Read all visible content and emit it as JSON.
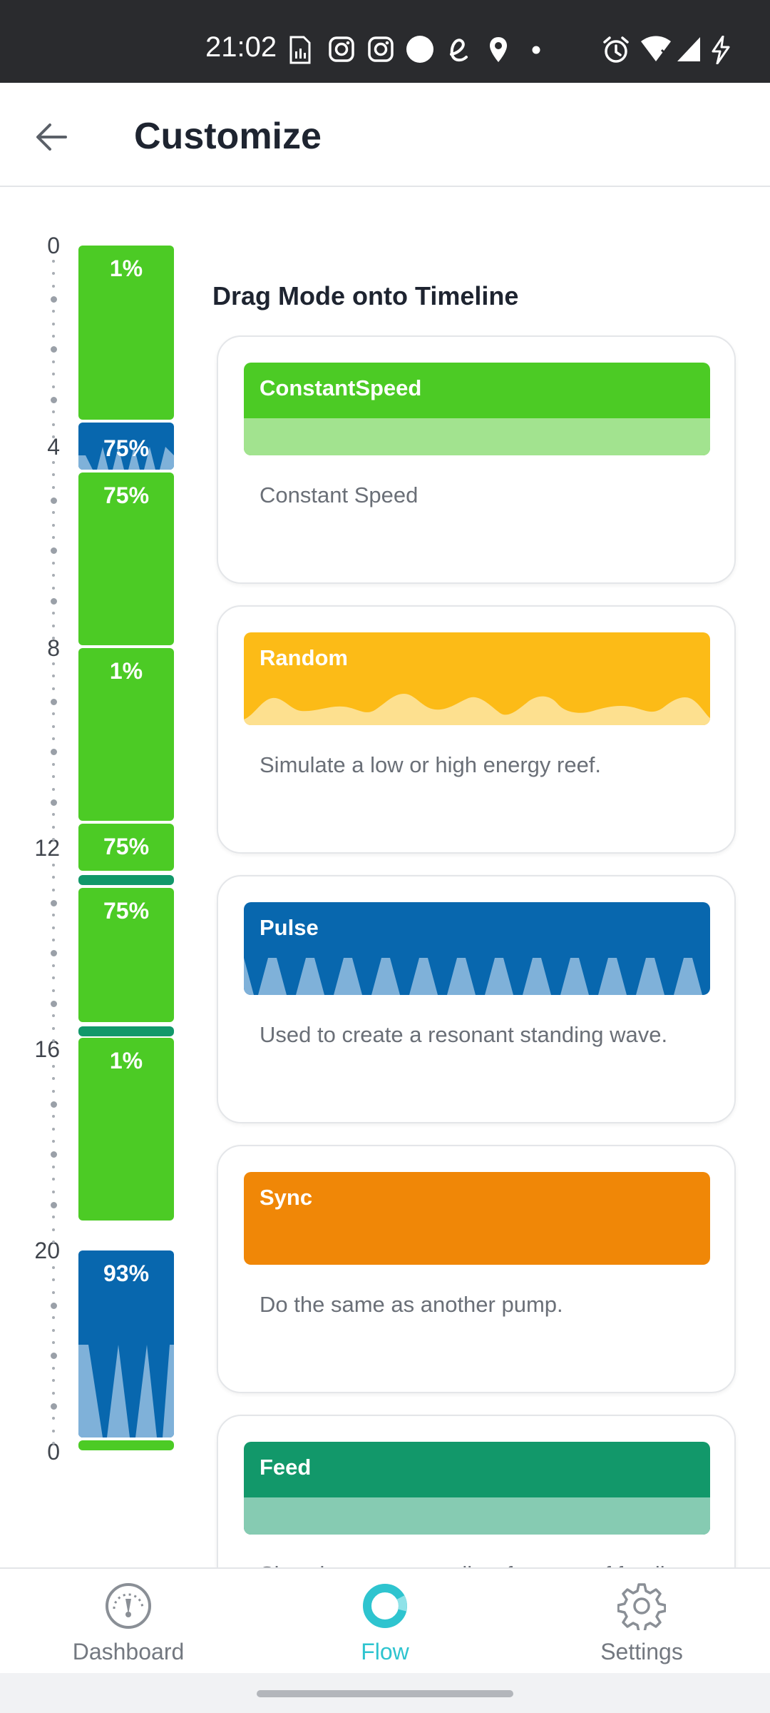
{
  "status_bar": {
    "time": "21:02"
  },
  "app_bar": {
    "title": "Customize"
  },
  "timeline": {
    "hour_labels": [
      "0",
      "4",
      "8",
      "12",
      "16",
      "20",
      "0"
    ],
    "segments": [
      {
        "mode": "ConstantSpeed",
        "label": "1%"
      },
      {
        "mode": "Pulse",
        "label": "75%"
      },
      {
        "mode": "ConstantSpeed",
        "label": "75%"
      },
      {
        "mode": "ConstantSpeed",
        "label": "1%"
      },
      {
        "mode": "ConstantSpeed",
        "label": "75%"
      },
      {
        "mode": "Feed",
        "label": ""
      },
      {
        "mode": "ConstantSpeed",
        "label": "75%"
      },
      {
        "mode": "Feed",
        "label": ""
      },
      {
        "mode": "ConstantSpeed",
        "label": "1%"
      },
      {
        "mode": "Pulse",
        "label": "93%"
      },
      {
        "mode": "ConstantSpeed",
        "label": ""
      }
    ]
  },
  "palette": {
    "heading": "Drag Mode onto Timeline",
    "modes": [
      {
        "name": "ConstantSpeed",
        "description": "Constant Speed",
        "color": "#4ccb25",
        "accent": "#a2e38f"
      },
      {
        "name": "Random",
        "description": "Simulate a low or high energy reef.",
        "color": "#fcbb17",
        "accent": "#fde08f"
      },
      {
        "name": "Pulse",
        "description": "Used to create a resonant standing wave.",
        "color": "#0867ae",
        "accent": "#7fb1d9"
      },
      {
        "name": "Sync",
        "description": "Do the same as another pump.",
        "color": "#f08707",
        "accent": "#f08707"
      },
      {
        "name": "Feed",
        "description": "Slow the current to allow for ease of feeding.",
        "color": "#12986a",
        "accent": "#86cbb2"
      }
    ]
  },
  "bottom_nav": {
    "items": [
      {
        "label": "Dashboard",
        "icon": "gauge-icon"
      },
      {
        "label": "Flow",
        "icon": "ring-icon"
      },
      {
        "label": "Settings",
        "icon": "gear-icon"
      }
    ],
    "active": "Flow"
  }
}
